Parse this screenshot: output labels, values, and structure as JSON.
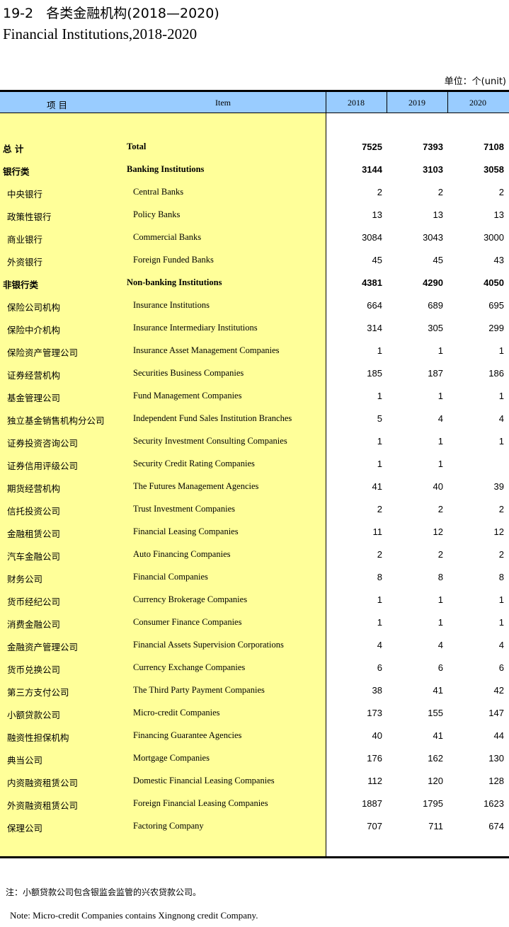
{
  "title_zh": "19-2   各类金融机构(2018—2020)",
  "title_en": "Financial Institutions,2018-2020",
  "unit": "单位：个(unit)",
  "header": {
    "item_zh": "项  目",
    "item_en": "Item",
    "years": [
      "2018",
      "2019",
      "2020"
    ]
  },
  "colors": {
    "header_bg": "#99ccff",
    "label_bg": "#ffff99"
  },
  "rows": [
    {
      "zh": "总  计",
      "en": "Total",
      "values": [
        "7525",
        "7393",
        "7108"
      ],
      "level": 0
    },
    {
      "zh": "银行类",
      "en": "Banking Institutions",
      "values": [
        "3144",
        "3103",
        "3058"
      ],
      "level": 0
    },
    {
      "zh": "中央银行",
      "en": "Central Banks",
      "values": [
        "2",
        "2",
        "2"
      ],
      "level": 1
    },
    {
      "zh": "政策性银行",
      "en": "Policy Banks",
      "values": [
        "13",
        "13",
        "13"
      ],
      "level": 1
    },
    {
      "zh": "商业银行",
      "en": "Commercial Banks",
      "values": [
        "3084",
        "3043",
        "3000"
      ],
      "level": 1
    },
    {
      "zh": "外资银行",
      "en": "Foreign Funded Banks",
      "values": [
        "45",
        "45",
        "43"
      ],
      "level": 1
    },
    {
      "zh": "非银行类",
      "en": "Non-banking Institutions",
      "values": [
        "4381",
        "4290",
        "4050"
      ],
      "level": 0
    },
    {
      "zh": "保险公司机构",
      "en": "Insurance Institutions",
      "values": [
        "664",
        "689",
        "695"
      ],
      "level": 1
    },
    {
      "zh": "保险中介机构",
      "en": "Insurance Intermediary Institutions",
      "values": [
        "314",
        "305",
        "299"
      ],
      "level": 1
    },
    {
      "zh": "保险资产管理公司",
      "en": "Insurance Asset Management Companies",
      "values": [
        "1",
        "1",
        "1"
      ],
      "level": 1
    },
    {
      "zh": "证券经营机构",
      "en": "Securities Business Companies",
      "values": [
        "185",
        "187",
        "186"
      ],
      "level": 1
    },
    {
      "zh": "基金管理公司",
      "en": "Fund Management Companies",
      "values": [
        "1",
        "1",
        "1"
      ],
      "level": 1
    },
    {
      "zh": "独立基金销售机构分公司",
      "en": "Independent Fund Sales Institution Branches",
      "values": [
        "5",
        "4",
        "4"
      ],
      "level": 1
    },
    {
      "zh": "证券投资咨询公司",
      "en": "Security Investment Consulting Companies",
      "values": [
        "1",
        "1",
        "1"
      ],
      "level": 1
    },
    {
      "zh": "证券信用评级公司",
      "en": "Security Credit Rating Companies",
      "values": [
        "1",
        "1",
        ""
      ],
      "level": 1
    },
    {
      "zh": "期货经营机构",
      "en": "The Futures Management Agencies",
      "values": [
        "41",
        "40",
        "39"
      ],
      "level": 1
    },
    {
      "zh": "信托投资公司",
      "en": "Trust Investment Companies",
      "values": [
        "2",
        "2",
        "2"
      ],
      "level": 1
    },
    {
      "zh": "金融租赁公司",
      "en": "Financial Leasing Companies",
      "values": [
        "11",
        "12",
        "12"
      ],
      "level": 1
    },
    {
      "zh": "汽车金融公司",
      "en": "Auto Financing Companies",
      "values": [
        "2",
        "2",
        "2"
      ],
      "level": 1
    },
    {
      "zh": "财务公司",
      "en": "Financial Companies",
      "values": [
        "8",
        "8",
        "8"
      ],
      "level": 1
    },
    {
      "zh": "货币经纪公司",
      "en": "Currency Brokerage Companies",
      "values": [
        "1",
        "1",
        "1"
      ],
      "level": 1
    },
    {
      "zh": "消费金融公司",
      "en": "Consumer Finance Companies",
      "values": [
        "1",
        "1",
        "1"
      ],
      "level": 1
    },
    {
      "zh": "金融资产管理公司",
      "en": "Financial Assets Supervision Corporations",
      "values": [
        "4",
        "4",
        "4"
      ],
      "level": 1
    },
    {
      "zh": "货币兑换公司",
      "en": "Currency Exchange Companies",
      "values": [
        "6",
        "6",
        "6"
      ],
      "level": 1
    },
    {
      "zh": "第三方支付公司",
      "en": "The Third Party Payment Companies",
      "values": [
        "38",
        "41",
        "42"
      ],
      "level": 1
    },
    {
      "zh": "小额贷款公司",
      "en": "Micro-credit Companies",
      "values": [
        "173",
        "155",
        "147"
      ],
      "level": 1
    },
    {
      "zh": "融资性担保机构",
      "en": "Financing Guarantee Agencies",
      "values": [
        "40",
        "41",
        "44"
      ],
      "level": 1
    },
    {
      "zh": "典当公司",
      "en": "Mortgage Companies",
      "values": [
        "176",
        "162",
        "130"
      ],
      "level": 1
    },
    {
      "zh": "内资融资租赁公司",
      "en": "Domestic Financial Leasing Companies",
      "values": [
        "112",
        "120",
        "128"
      ],
      "level": 1
    },
    {
      "zh": "外资融资租赁公司",
      "en": "Foreign Financial Leasing Companies",
      "values": [
        "1887",
        "1795",
        "1623"
      ],
      "level": 1
    },
    {
      "zh": "保理公司",
      "en": "Factoring Company",
      "values": [
        "707",
        "711",
        "674"
      ],
      "level": 1
    }
  ],
  "note_zh": "注：小额贷款公司包含银监会监管的兴农贷款公司。",
  "note_en": "Note: Micro-credit Companies contains Xingnong credit Company."
}
